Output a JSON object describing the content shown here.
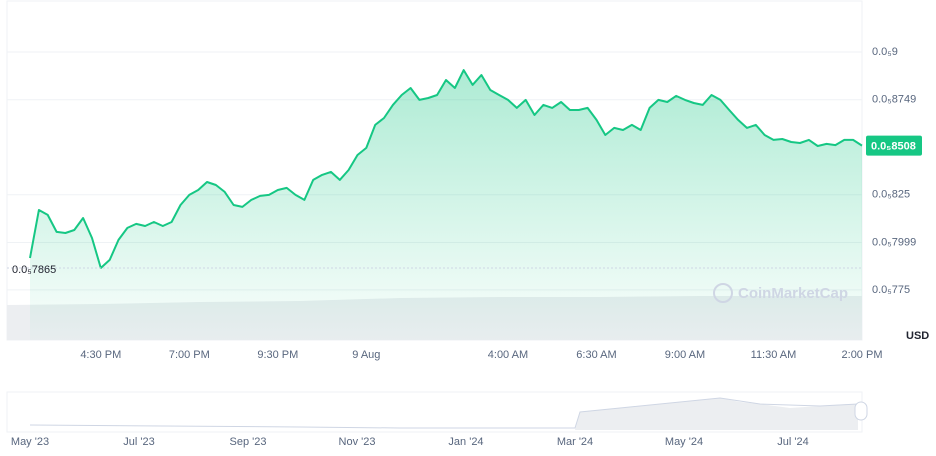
{
  "chart_data": {
    "type": "line",
    "color": "#16c784",
    "categories": [
      null,
      null,
      null,
      null,
      null,
      null,
      null,
      null,
      "4:30 PM",
      null,
      null,
      null,
      null,
      null,
      null,
      null,
      null,
      null,
      "7:00 PM",
      null,
      null,
      null,
      null,
      null,
      null,
      null,
      null,
      null,
      "9:30 PM",
      null,
      null,
      null,
      null,
      null,
      null,
      null,
      null,
      null,
      "9 Aug",
      null,
      null,
      null,
      null,
      null,
      null,
      null,
      null,
      null,
      null,
      null,
      null,
      null,
      null,
      null,
      "4:00 AM",
      null,
      null,
      null,
      null,
      null,
      null,
      null,
      null,
      null,
      "6:30 AM",
      null,
      null,
      null,
      null,
      null,
      null,
      null,
      null,
      null,
      "9:00 AM",
      null,
      null,
      null,
      null,
      null,
      null,
      null,
      null,
      null,
      "11:30 AM",
      null,
      null,
      null,
      null,
      null,
      null,
      null,
      null,
      null,
      "2:00 PM"
    ],
    "values": [
      7.918e-06,
      8.17e-06,
      8.144e-06,
      8.055e-06,
      8.049e-06,
      8.065e-06,
      8.128e-06,
      8.023e-06,
      7.865e-06,
      7.908e-06,
      8.013e-06,
      8.076e-06,
      8.097e-06,
      8.086e-06,
      8.107e-06,
      8.086e-06,
      8.107e-06,
      8.196e-06,
      8.249e-06,
      8.275e-06,
      8.317e-06,
      8.301e-06,
      8.265e-06,
      8.196e-06,
      8.186e-06,
      8.223e-06,
      8.244e-06,
      8.249e-06,
      8.275e-06,
      8.286e-06,
      8.249e-06,
      8.223e-06,
      8.328e-06,
      8.354e-06,
      8.37e-06,
      8.328e-06,
      8.38e-06,
      8.459e-06,
      8.496e-06,
      8.617e-06,
      8.653e-06,
      8.722e-06,
      8.774e-06,
      8.811e-06,
      8.748e-06,
      8.758e-06,
      8.774e-06,
      8.853e-06,
      8.811e-06,
      8.905e-06,
      8.827e-06,
      8.879e-06,
      8.8e-06,
      8.774e-06,
      8.748e-06,
      8.706e-06,
      8.748e-06,
      8.669e-06,
      8.722e-06,
      8.706e-06,
      8.737e-06,
      8.695e-06,
      8.695e-06,
      8.706e-06,
      8.643e-06,
      8.564e-06,
      8.601e-06,
      8.59e-06,
      8.617e-06,
      8.59e-06,
      8.706e-06,
      8.748e-06,
      8.737e-06,
      8.769e-06,
      8.748e-06,
      8.732e-06,
      8.722e-06,
      8.774e-06,
      8.748e-06,
      8.695e-06,
      8.643e-06,
      8.601e-06,
      8.617e-06,
      8.564e-06,
      8.538e-06,
      8.543e-06,
      8.527e-06,
      8.522e-06,
      8.538e-06,
      8.506e-06,
      8.517e-06,
      8.511e-06,
      8.538e-06,
      8.538e-06,
      8.508e-06
    ],
    "ylim": [
      7.487e-06,
      9.273e-06
    ],
    "yticks": [
      {
        "value": 9e-06,
        "label": "0.0₅9"
      },
      {
        "value": 8.749e-06,
        "label": "0.0₅8749"
      },
      {
        "value": 8.25e-06,
        "label": "0.0₅825"
      },
      {
        "value": 7.999e-06,
        "label": "0.0₅7999"
      },
      {
        "value": 7.75e-06,
        "label": "0.0₅775"
      }
    ],
    "grid": true,
    "current_price": {
      "value": 8.508e-06,
      "label": "0.0₅8508"
    },
    "low_price": {
      "value": 7.865e-06,
      "label": "0.0₅7865"
    },
    "currency": "USD",
    "watermark": "CoinMarketCap"
  },
  "navigator": {
    "labels": [
      "May '23",
      "Jul '23",
      "Sep '23",
      "Nov '23",
      "Jan '24",
      "Mar '24",
      "May '24",
      "Jul '24"
    ]
  }
}
